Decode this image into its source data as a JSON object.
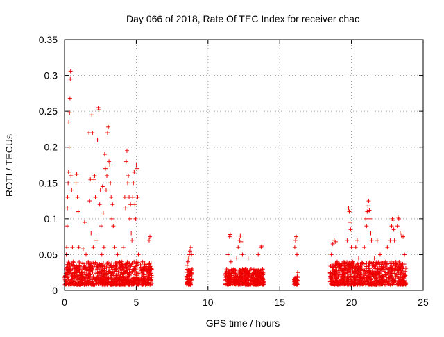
{
  "chart_data": {
    "type": "scatter",
    "title": "Day 066 of 2018, Rate Of TEC Index for receiver chac",
    "xlabel": "GPS time / hours",
    "ylabel": "ROTI / TECUs",
    "xlim": [
      0,
      25
    ],
    "ylim": [
      0,
      0.35
    ],
    "grid": true,
    "marker": "+",
    "color": "#ee0000",
    "xticks": [
      0,
      5,
      10,
      15,
      20,
      25
    ],
    "yticks": [
      0,
      0.05,
      0.1,
      0.15,
      0.2,
      0.25,
      0.3,
      0.35
    ],
    "xtick_labels": [
      "0",
      "5",
      "10",
      "15",
      "20",
      "25"
    ],
    "ytick_labels": [
      "0",
      "0.05",
      "0.1",
      "0.15",
      "0.2",
      "0.25",
      "0.3",
      "0.35"
    ],
    "series": [
      {
        "name": "ROTI",
        "points": [
          [
            0.05,
            0.02
          ],
          [
            0.1,
            0.03
          ],
          [
            0.12,
            0.05
          ],
          [
            0.15,
            0.06
          ],
          [
            0.18,
            0.09
          ],
          [
            0.2,
            0.115
          ],
          [
            0.22,
            0.13
          ],
          [
            0.25,
            0.15
          ],
          [
            0.28,
            0.165
          ],
          [
            0.3,
            0.235
          ],
          [
            0.32,
            0.2
          ],
          [
            0.35,
            0.248
          ],
          [
            0.38,
            0.268
          ],
          [
            0.4,
            0.295
          ],
          [
            0.42,
            0.306
          ],
          [
            0.45,
            0.16
          ],
          [
            0.5,
            0.14
          ],
          [
            0.55,
            0.06
          ],
          [
            0.6,
            0.04
          ],
          [
            0.7,
            0.025
          ],
          [
            0.8,
            0.15
          ],
          [
            0.85,
            0.162
          ],
          [
            0.9,
            0.13
          ],
          [
            0.95,
            0.11
          ],
          [
            1.0,
            0.06
          ],
          [
            1.1,
            0.03
          ],
          [
            1.2,
            0.025
          ],
          [
            1.3,
            0.058
          ],
          [
            1.4,
            0.095
          ],
          [
            1.5,
            0.05
          ],
          [
            1.6,
            0.03
          ],
          [
            1.7,
            0.22
          ],
          [
            1.75,
            0.125
          ],
          [
            1.8,
            0.155
          ],
          [
            1.85,
            0.08
          ],
          [
            1.9,
            0.245
          ],
          [
            1.95,
            0.22
          ],
          [
            2.0,
            0.06
          ],
          [
            2.05,
            0.155
          ],
          [
            2.1,
            0.16
          ],
          [
            2.15,
            0.13
          ],
          [
            2.2,
            0.07
          ],
          [
            2.3,
            0.21
          ],
          [
            2.35,
            0.255
          ],
          [
            2.4,
            0.252
          ],
          [
            2.45,
            0.12
          ],
          [
            2.5,
            0.14
          ],
          [
            2.55,
            0.09
          ],
          [
            2.6,
            0.05
          ],
          [
            2.65,
            0.145
          ],
          [
            2.7,
            0.108
          ],
          [
            2.75,
            0.06
          ],
          [
            2.8,
            0.19
          ],
          [
            2.85,
            0.17
          ],
          [
            2.9,
            0.14
          ],
          [
            2.95,
            0.16
          ],
          [
            3.0,
            0.22
          ],
          [
            3.05,
            0.228
          ],
          [
            3.1,
            0.18
          ],
          [
            3.15,
            0.175
          ],
          [
            3.2,
            0.15
          ],
          [
            3.25,
            0.13
          ],
          [
            3.3,
            0.1
          ],
          [
            3.35,
            0.12
          ],
          [
            3.4,
            0.09
          ],
          [
            3.5,
            0.06
          ],
          [
            3.6,
            0.035
          ],
          [
            3.7,
            0.05
          ],
          [
            3.8,
            0.04
          ],
          [
            3.9,
            0.03
          ],
          [
            4.0,
            0.04
          ],
          [
            4.1,
            0.06
          ],
          [
            4.2,
            0.13
          ],
          [
            4.25,
            0.115
          ],
          [
            4.3,
            0.18
          ],
          [
            4.35,
            0.195
          ],
          [
            4.4,
            0.15
          ],
          [
            4.45,
            0.16
          ],
          [
            4.5,
            0.13
          ],
          [
            4.55,
            0.1
          ],
          [
            4.6,
            0.12
          ],
          [
            4.65,
            0.08
          ],
          [
            4.7,
            0.07
          ],
          [
            4.75,
            0.13
          ],
          [
            4.8,
            0.15
          ],
          [
            4.85,
            0.165
          ],
          [
            4.9,
            0.12
          ],
          [
            4.95,
            0.1
          ],
          [
            5.0,
            0.175
          ],
          [
            5.05,
            0.17
          ],
          [
            5.1,
            0.13
          ],
          [
            5.15,
            0.05
          ],
          [
            5.3,
            0.03
          ],
          [
            5.5,
            0.02
          ],
          [
            5.8,
            0.015
          ],
          [
            5.9,
            0.07
          ],
          [
            5.95,
            0.075
          ],
          [
            6.0,
            0.03
          ],
          [
            8.5,
            0.02
          ],
          [
            8.55,
            0.035
          ],
          [
            8.6,
            0.04
          ],
          [
            8.65,
            0.045
          ],
          [
            8.7,
            0.05
          ],
          [
            8.75,
            0.055
          ],
          [
            8.8,
            0.06
          ],
          [
            8.85,
            0.05
          ],
          [
            8.9,
            0.03
          ],
          [
            11.3,
            0.03
          ],
          [
            11.4,
            0.05
          ],
          [
            11.5,
            0.075
          ],
          [
            11.55,
            0.078
          ],
          [
            11.6,
            0.04
          ],
          [
            11.8,
            0.03
          ],
          [
            12.0,
            0.045
          ],
          [
            12.1,
            0.06
          ],
          [
            12.2,
            0.07
          ],
          [
            12.25,
            0.076
          ],
          [
            12.3,
            0.068
          ],
          [
            12.4,
            0.05
          ],
          [
            12.5,
            0.03
          ],
          [
            12.8,
            0.045
          ],
          [
            13.0,
            0.03
          ],
          [
            13.2,
            0.025
          ],
          [
            13.5,
            0.05
          ],
          [
            13.7,
            0.06
          ],
          [
            13.75,
            0.062
          ],
          [
            13.8,
            0.03
          ],
          [
            16.0,
            0.01
          ],
          [
            16.05,
            0.06
          ],
          [
            16.1,
            0.07
          ],
          [
            16.15,
            0.075
          ],
          [
            16.2,
            0.05
          ],
          [
            16.25,
            0.025
          ],
          [
            18.6,
            0.05
          ],
          [
            18.7,
            0.065
          ],
          [
            18.8,
            0.07
          ],
          [
            18.9,
            0.068
          ],
          [
            19.0,
            0.04
          ],
          [
            19.2,
            0.03
          ],
          [
            19.5,
            0.035
          ],
          [
            19.7,
            0.07
          ],
          [
            19.8,
            0.115
          ],
          [
            19.85,
            0.11
          ],
          [
            19.9,
            0.095
          ],
          [
            19.95,
            0.085
          ],
          [
            20.0,
            0.06
          ],
          [
            20.1,
            0.04
          ],
          [
            20.3,
            0.06
          ],
          [
            20.4,
            0.07
          ],
          [
            20.5,
            0.045
          ],
          [
            20.7,
            0.035
          ],
          [
            20.9,
            0.06
          ],
          [
            21.0,
            0.1
          ],
          [
            21.05,
            0.09
          ],
          [
            21.1,
            0.11
          ],
          [
            21.15,
            0.118
          ],
          [
            21.2,
            0.125
          ],
          [
            21.25,
            0.112
          ],
          [
            21.3,
            0.1
          ],
          [
            21.35,
            0.08
          ],
          [
            21.4,
            0.07
          ],
          [
            21.6,
            0.045
          ],
          [
            21.8,
            0.07
          ],
          [
            22.0,
            0.05
          ],
          [
            22.2,
            0.03
          ],
          [
            22.5,
            0.06
          ],
          [
            22.7,
            0.07
          ],
          [
            22.8,
            0.09
          ],
          [
            22.85,
            0.1
          ],
          [
            22.9,
            0.098
          ],
          [
            22.95,
            0.085
          ],
          [
            23.0,
            0.07
          ],
          [
            23.2,
            0.09
          ],
          [
            23.25,
            0.102
          ],
          [
            23.3,
            0.1
          ],
          [
            23.4,
            0.08
          ],
          [
            23.5,
            0.076
          ],
          [
            23.6,
            0.075
          ],
          [
            23.7,
            0.05
          ]
        ],
        "baseline_bands": [
          [
            0.0,
            6.1,
            0.008,
            0.04
          ],
          [
            8.5,
            8.9,
            0.008,
            0.03
          ],
          [
            11.2,
            13.9,
            0.008,
            0.03
          ],
          [
            16.0,
            16.25,
            0.008,
            0.02
          ],
          [
            18.5,
            23.8,
            0.008,
            0.04
          ]
        ]
      }
    ]
  }
}
